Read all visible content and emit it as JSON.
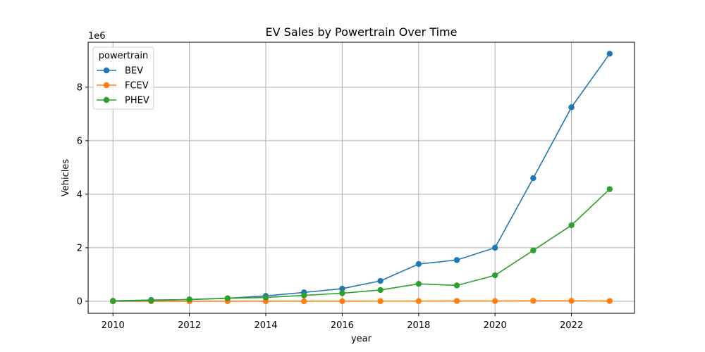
{
  "chart_data": {
    "type": "line",
    "title": "EV Sales by Powertrain Over Time",
    "xlabel": "year",
    "ylabel": "Vehicles",
    "y_scale_label": "1e6",
    "y_scale_factor": 1000000,
    "x": [
      2010,
      2011,
      2012,
      2013,
      2014,
      2015,
      2016,
      2017,
      2018,
      2019,
      2020,
      2021,
      2022,
      2023
    ],
    "xlim": [
      2009.35,
      2023.65
    ],
    "ylim": [
      -450000,
      9680000
    ],
    "xticks": [
      2010,
      2012,
      2014,
      2016,
      2018,
      2020,
      2022
    ],
    "xtick_labels": [
      "2010",
      "2012",
      "2014",
      "2016",
      "2018",
      "2020",
      "2022"
    ],
    "yticks": [
      0,
      2000000,
      4000000,
      6000000,
      8000000
    ],
    "ytick_labels": [
      "0",
      "2",
      "4",
      "6",
      "8"
    ],
    "grid": true,
    "legend_title": "powertrain",
    "legend_position": "top-left",
    "series": [
      {
        "name": "BEV",
        "color": "#1f77b4",
        "values": [
          15000,
          45000,
          60000,
          110000,
          200000,
          330000,
          470000,
          760000,
          1390000,
          1540000,
          2000000,
          4600000,
          7250000,
          9250000
        ]
      },
      {
        "name": "FCEV",
        "color": "#ff7f0e",
        "values": [
          0,
          0,
          0,
          1000,
          1000,
          1000,
          2000,
          4000,
          6000,
          10000,
          9000,
          16000,
          16000,
          10000
        ]
      },
      {
        "name": "PHEV",
        "color": "#2ca02c",
        "values": [
          5000,
          25000,
          70000,
          110000,
          140000,
          220000,
          300000,
          420000,
          650000,
          590000,
          970000,
          1900000,
          2840000,
          4190000
        ]
      }
    ]
  }
}
